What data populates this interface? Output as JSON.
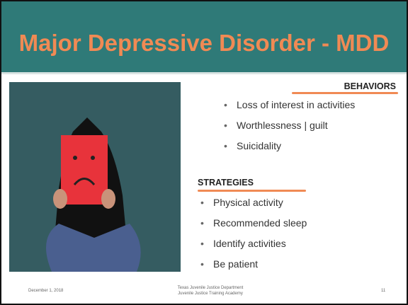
{
  "header": {
    "title": "Major Depressive Disorder - MDD"
  },
  "behaviors": {
    "heading": "BEHAVIORS",
    "items": [
      "Loss of interest in activities",
      "Worthlessness | guilt",
      "Suicidality"
    ]
  },
  "strategies": {
    "heading": "STRATEGIES",
    "items": [
      "Physical activity",
      "Recommended sleep",
      "Identify activities",
      "Be patient"
    ]
  },
  "footer": {
    "date": "December 1, 2018",
    "organization": [
      "Texas Juvenile Justice Department",
      "Juvenile Justice Training Academy"
    ],
    "page": "11"
  }
}
